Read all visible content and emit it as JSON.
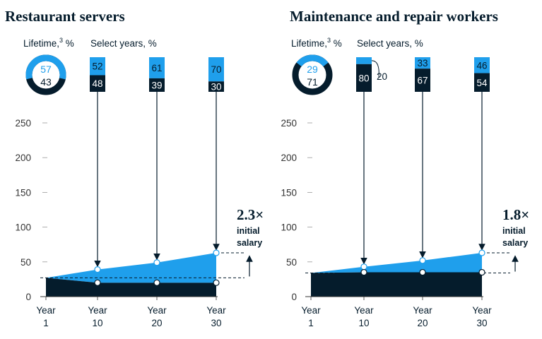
{
  "colors": {
    "navy": "#051c2c",
    "cyan": "#1f9fec",
    "grid": "#bdbdbd"
  },
  "chart_data": [
    {
      "type": "area",
      "title": "Restaurant servers",
      "lifetime_label": "Lifetime,",
      "lifetime_sup": "3",
      "lifetime_unit": " %",
      "select_label": "Select years, %",
      "lifetime_split": [
        57,
        43
      ],
      "y_ticks": [
        "250",
        "200",
        "150",
        "100",
        "50",
        "0"
      ],
      "ylim": [
        0,
        270
      ],
      "x_ticks": [
        {
          "top": "Year",
          "bottom": "1"
        },
        {
          "top": "Year",
          "bottom": "10"
        },
        {
          "top": "Year",
          "bottom": "20"
        },
        {
          "top": "Year",
          "bottom": "30"
        }
      ],
      "x": [
        1,
        10,
        20,
        30
      ],
      "series": [
        {
          "values": [
            27,
            20,
            20,
            20
          ]
        },
        {
          "values": [
            27,
            39,
            49,
            63
          ]
        }
      ],
      "select_years": [
        {
          "top": 52,
          "bottom": 48
        },
        {
          "top": 61,
          "bottom": 39
        },
        {
          "top": 70,
          "bottom": 30
        }
      ],
      "multiplier": "2.3×",
      "multiplier_note_1": "initial",
      "multiplier_note_2": "salary"
    },
    {
      "type": "area",
      "title": "Maintenance and repair workers",
      "lifetime_label": "Lifetime,",
      "lifetime_sup": "3",
      "lifetime_unit": " %",
      "select_label": "Select years, %",
      "lifetime_split": [
        29,
        71
      ],
      "y_ticks": [
        "250",
        "200",
        "150",
        "100",
        "50",
        "0"
      ],
      "ylim": [
        0,
        270
      ],
      "x_ticks": [
        {
          "top": "Year",
          "bottom": "1"
        },
        {
          "top": "Year",
          "bottom": "10"
        },
        {
          "top": "Year",
          "bottom": "20"
        },
        {
          "top": "Year",
          "bottom": "30"
        }
      ],
      "x": [
        1,
        10,
        20,
        30
      ],
      "series": [
        {
          "values": [
            34,
            35,
            35,
            35
          ]
        },
        {
          "values": [
            34,
            43,
            52,
            63
          ]
        }
      ],
      "select_years": [
        {
          "top": 20,
          "bottom": 80
        },
        {
          "top": 33,
          "bottom": 67
        },
        {
          "top": 46,
          "bottom": 54
        }
      ],
      "multiplier": "1.8×",
      "multiplier_note_1": "initial",
      "multiplier_note_2": "salary"
    }
  ]
}
